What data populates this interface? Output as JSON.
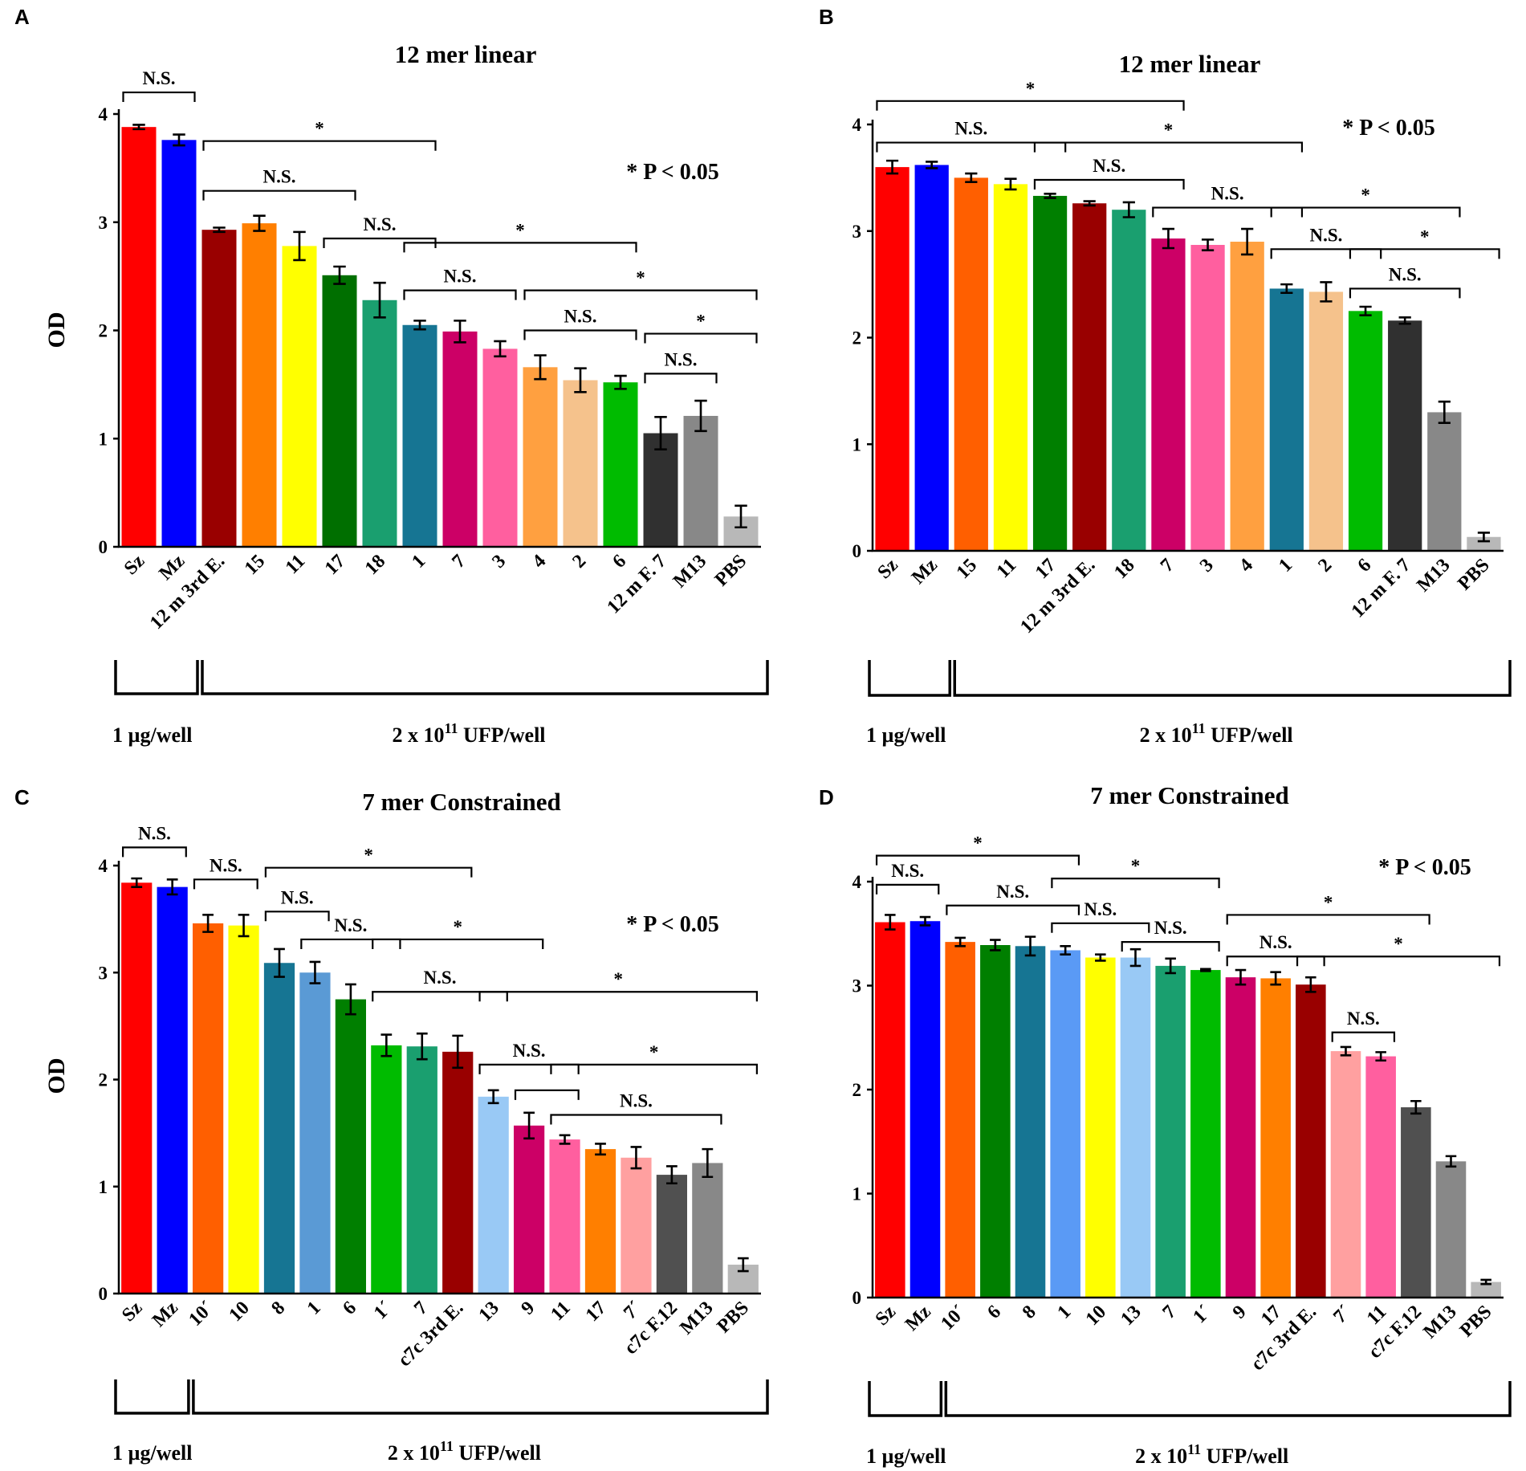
{
  "panels": [
    {
      "label": "A",
      "title": "12 mer linear",
      "ylabel": "OD",
      "ylim": [
        0,
        4
      ],
      "yticks": [
        "0",
        "1",
        "2",
        "3",
        "4"
      ],
      "note": "* P < 0.05",
      "chart_data": {
        "type": "bar",
        "title": "12 mer linear",
        "ylabel": "OD",
        "ylim": [
          0,
          4
        ],
        "categories": [
          "Sz",
          "Mz",
          "12 m 3rd E.",
          "15",
          "11",
          "17",
          "18",
          "1",
          "7",
          "3",
          "4",
          "2",
          "6",
          "12 m F. 7",
          "M13",
          "PBS"
        ],
        "values": [
          3.88,
          3.76,
          2.93,
          2.99,
          2.78,
          2.51,
          2.28,
          2.05,
          1.99,
          1.83,
          1.66,
          1.54,
          1.52,
          1.05,
          1.21,
          0.28
        ],
        "errors": [
          0.02,
          0.05,
          0.02,
          0.07,
          0.13,
          0.08,
          0.16,
          0.04,
          0.1,
          0.07,
          0.11,
          0.11,
          0.06,
          0.15,
          0.14,
          0.1
        ],
        "colors": [
          "#ff0000",
          "#0000ff",
          "#990000",
          "#ff7f00",
          "#ffff00",
          "#006f00",
          "#1a9f6f",
          "#167593",
          "#cc0066",
          "#ff5f9f",
          "#ffa040",
          "#f5c28c",
          "#00bb00",
          "#303030",
          "#888888",
          "#b8b8b8"
        ]
      },
      "brackets": [
        {
          "from": 0,
          "to": 1,
          "y": 4.2,
          "label": "N.S."
        },
        {
          "from": 2,
          "to": 7,
          "y": 3.75,
          "label": "*"
        },
        {
          "from": 2,
          "to": 5,
          "y": 3.29,
          "label": "N.S."
        },
        {
          "from": 5,
          "to": 7,
          "y": 2.85,
          "label": "N.S."
        },
        {
          "from": 7,
          "to": 12,
          "y": 2.81,
          "label": "*"
        },
        {
          "from": 7,
          "to": 9,
          "y": 2.37,
          "label": "N.S."
        },
        {
          "from": 10,
          "to": 15,
          "y": 2.37,
          "label": "*"
        },
        {
          "from": 10,
          "to": 12,
          "y": 2.0,
          "label": "N.S."
        },
        {
          "from": 13,
          "to": 15,
          "y": 1.97,
          "label": "*"
        },
        {
          "from": 13,
          "to": 14,
          "y": 1.6,
          "label": "N.S."
        }
      ],
      "groups": [
        {
          "from": 0,
          "to": 1,
          "label": "1 µg/well",
          "sup": ""
        },
        {
          "from": 2,
          "to": 15,
          "label": "2 x 10",
          "sup": "11",
          "suffix": " UFP/well"
        }
      ]
    },
    {
      "label": "B",
      "title": "12 mer linear",
      "ylabel": "",
      "ylim": [
        0,
        4
      ],
      "yticks": [
        "0",
        "1",
        "2",
        "3",
        "4"
      ],
      "note": "* P < 0.05",
      "chart_data": {
        "type": "bar",
        "title": "12 mer linear",
        "ylabel": "",
        "ylim": [
          0,
          4
        ],
        "categories": [
          "Sz",
          "Mz",
          "15",
          "11",
          "17",
          "12 m 3rd E.",
          "18",
          "7",
          "3",
          "4",
          "1",
          "2",
          "6",
          "12 m F. 7",
          "M13",
          "PBS"
        ],
        "values": [
          3.6,
          3.62,
          3.5,
          3.44,
          3.33,
          3.26,
          3.2,
          2.93,
          2.87,
          2.9,
          2.46,
          2.43,
          2.25,
          2.16,
          1.3,
          0.13
        ],
        "errors": [
          0.06,
          0.03,
          0.04,
          0.05,
          0.02,
          0.02,
          0.07,
          0.09,
          0.05,
          0.12,
          0.04,
          0.09,
          0.04,
          0.03,
          0.1,
          0.04
        ],
        "colors": [
          "#ff0000",
          "#0000ff",
          "#ff5f00",
          "#ffff00",
          "#007f00",
          "#990000",
          "#1a9f6f",
          "#cc0066",
          "#ff5f9f",
          "#ffa040",
          "#167593",
          "#f5c28c",
          "#00bb00",
          "#303030",
          "#888888",
          "#b8b8b8"
        ]
      },
      "brackets": [
        {
          "from": 0,
          "to": 7,
          "y": 4.22,
          "label": "*"
        },
        {
          "from": 0,
          "to": 4,
          "y": 3.83,
          "label": "N.S."
        },
        {
          "from": 4,
          "to": 10,
          "y": 3.83,
          "label": "*"
        },
        {
          "from": 4,
          "to": 7,
          "y": 3.48,
          "label": "N.S."
        },
        {
          "from": 7,
          "to": 10,
          "y": 3.22,
          "label": "N.S."
        },
        {
          "from": 10,
          "to": 14,
          "y": 3.22,
          "label": "*"
        },
        {
          "from": 10,
          "to": 12,
          "y": 2.83,
          "label": "N.S."
        },
        {
          "from": 12,
          "to": 15,
          "y": 2.83,
          "label": "*"
        },
        {
          "from": 12,
          "to": 14,
          "y": 2.46,
          "label": "N.S."
        }
      ],
      "groups": [
        {
          "from": 0,
          "to": 1,
          "label": "1 µg/well",
          "sup": ""
        },
        {
          "from": 2,
          "to": 15,
          "label": "2 x 10",
          "sup": "11",
          "suffix": " UFP/well"
        }
      ]
    },
    {
      "label": "C",
      "title": "7 mer Constrained",
      "ylabel": "OD",
      "ylim": [
        0,
        4
      ],
      "yticks": [
        "0",
        "1",
        "2",
        "3",
        "4"
      ],
      "note": "* P < 0.05",
      "chart_data": {
        "type": "bar",
        "title": "7 mer Constrained",
        "ylabel": "OD",
        "ylim": [
          0,
          4
        ],
        "categories": [
          "Sz",
          "Mz",
          "10´",
          "10",
          "8",
          "1",
          "6",
          "1´",
          "7",
          "c7c 3rd E.",
          "13",
          "9",
          "11",
          "17",
          "7´",
          "c7c F.12",
          "M13",
          "PBS"
        ],
        "values": [
          3.84,
          3.8,
          3.46,
          3.44,
          3.09,
          3.0,
          2.75,
          2.32,
          2.31,
          2.26,
          1.84,
          1.57,
          1.44,
          1.35,
          1.27,
          1.11,
          1.22,
          0.27
        ],
        "errors": [
          0.04,
          0.07,
          0.08,
          0.1,
          0.13,
          0.1,
          0.14,
          0.1,
          0.12,
          0.15,
          0.06,
          0.12,
          0.04,
          0.05,
          0.1,
          0.08,
          0.13,
          0.06
        ],
        "colors": [
          "#ff0000",
          "#0000ff",
          "#ff5f00",
          "#ffff00",
          "#167593",
          "#5a9ad5",
          "#007f00",
          "#00bb00",
          "#1a9f6f",
          "#990000",
          "#99c9f5",
          "#cc0066",
          "#ff5f9f",
          "#ff7f00",
          "#ffa0a0",
          "#505050",
          "#888888",
          "#b8b8b8"
        ]
      },
      "brackets": [
        {
          "from": 0,
          "to": 1,
          "y": 4.17,
          "label": "N.S."
        },
        {
          "from": 2,
          "to": 3,
          "y": 3.87,
          "label": "N.S."
        },
        {
          "from": 4,
          "to": 9,
          "y": 3.98,
          "label": "*"
        },
        {
          "from": 4,
          "to": 5,
          "y": 3.57,
          "label": "N.S."
        },
        {
          "from": 5,
          "to": 7,
          "y": 3.31,
          "label": "N.S."
        },
        {
          "from": 7,
          "to": 11,
          "y": 3.31,
          "label": "*"
        },
        {
          "from": 7,
          "to": 10,
          "y": 2.82,
          "label": "N.S."
        },
        {
          "from": 10,
          "to": 17,
          "y": 2.82,
          "label": "*"
        },
        {
          "from": 10,
          "to": 12,
          "y": 2.14,
          "label": "N.S."
        },
        {
          "from": 12,
          "to": 17,
          "y": 2.14,
          "label": "*"
        },
        {
          "from": 11,
          "to": 12,
          "y": 1.9,
          "label": ""
        },
        {
          "from": 12,
          "to": 16,
          "y": 1.67,
          "label": "N.S."
        }
      ],
      "groups": [
        {
          "from": 0,
          "to": 1,
          "label": "1 µg/well",
          "sup": ""
        },
        {
          "from": 2,
          "to": 17,
          "label": "2 x 10",
          "sup": "11",
          "suffix": " UFP/well"
        }
      ]
    },
    {
      "label": "D",
      "title": "7 mer Constrained",
      "ylabel": "",
      "ylim": [
        0,
        4
      ],
      "yticks": [
        "0",
        "1",
        "2",
        "3",
        "4"
      ],
      "note": "* P < 0.05",
      "chart_data": {
        "type": "bar",
        "title": "7 mer Constrained",
        "ylabel": "",
        "ylim": [
          0,
          4
        ],
        "categories": [
          "Sz",
          "Mz",
          "10´",
          "6",
          "8",
          "1",
          "10",
          "13",
          "7",
          "1´",
          "9",
          "17",
          "c7c 3rd E.",
          "7´",
          "11",
          "c7c F.12",
          "M13",
          "PBS"
        ],
        "values": [
          3.61,
          3.62,
          3.42,
          3.39,
          3.38,
          3.34,
          3.27,
          3.27,
          3.19,
          3.15,
          3.08,
          3.07,
          3.01,
          2.37,
          2.32,
          1.83,
          1.31,
          0.15
        ],
        "errors": [
          0.07,
          0.04,
          0.04,
          0.05,
          0.09,
          0.04,
          0.03,
          0.08,
          0.07,
          0.01,
          0.07,
          0.06,
          0.07,
          0.04,
          0.04,
          0.06,
          0.05,
          0.02
        ],
        "colors": [
          "#ff0000",
          "#0000ff",
          "#ff5f00",
          "#007f00",
          "#167593",
          "#5a9af5",
          "#ffff00",
          "#99c9f5",
          "#1a9f6f",
          "#00bb00",
          "#cc0066",
          "#ff7f00",
          "#990000",
          "#ffa0a0",
          "#ff5f9f",
          "#505050",
          "#888888",
          "#b8b8b8"
        ]
      },
      "brackets": [
        {
          "from": 0,
          "to": 5,
          "y": 4.25,
          "label": "*"
        },
        {
          "from": 0,
          "to": 1,
          "y": 3.97,
          "label": "N.S."
        },
        {
          "from": 5,
          "to": 9,
          "y": 4.03,
          "label": "*"
        },
        {
          "from": 2,
          "to": 5,
          "y": 3.77,
          "label": "N.S."
        },
        {
          "from": 5,
          "to": 7,
          "y": 3.6,
          "label": "N.S."
        },
        {
          "from": 7,
          "to": 9,
          "y": 3.42,
          "label": "N.S."
        },
        {
          "from": 10,
          "to": 15,
          "y": 3.68,
          "label": "*"
        },
        {
          "from": 10,
          "to": 12,
          "y": 3.28,
          "label": "N.S."
        },
        {
          "from": 12,
          "to": 17,
          "y": 3.28,
          "label": "*"
        },
        {
          "from": 13,
          "to": 14,
          "y": 2.55,
          "label": "N.S."
        }
      ],
      "groups": [
        {
          "from": 0,
          "to": 1,
          "label": "1 µg/well",
          "sup": ""
        },
        {
          "from": 2,
          "to": 17,
          "label": "2 x 10",
          "sup": "11",
          "suffix": " UFP/well"
        }
      ]
    }
  ]
}
